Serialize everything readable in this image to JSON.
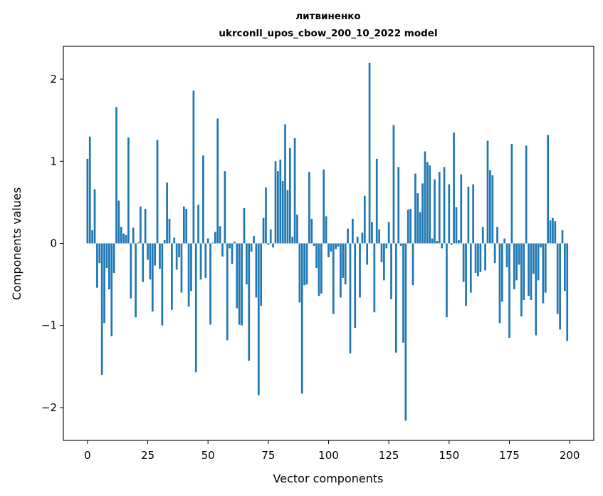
{
  "chart_data": {
    "type": "bar",
    "title_line1": "литвиненко",
    "title_line2": "ukrconll_upos_cbow_200_10_2022 model",
    "xlabel": "Vector components",
    "ylabel": "Components values",
    "xlim": [
      -10,
      210
    ],
    "ylim": [
      -2.4,
      2.4
    ],
    "xticks": [
      0,
      25,
      50,
      75,
      100,
      125,
      150,
      175,
      200
    ],
    "xtick_labels": [
      "0",
      "25",
      "50",
      "75",
      "100",
      "125",
      "150",
      "175",
      "200"
    ],
    "yticks": [
      -2,
      -1,
      0,
      1,
      2
    ],
    "ytick_labels": [
      "−2",
      "−1",
      "0",
      "1",
      "2"
    ],
    "grid": false,
    "bar_color": "#1f77b4",
    "values": [
      1.03,
      1.3,
      0.16,
      0.66,
      -0.54,
      -0.24,
      -1.6,
      -0.97,
      -0.3,
      -0.56,
      -1.13,
      -0.36,
      1.66,
      0.52,
      0.2,
      0.12,
      0.1,
      1.29,
      -0.67,
      0.19,
      -0.9,
      0.01,
      0.45,
      -0.47,
      0.42,
      -0.2,
      -0.44,
      -0.83,
      -0.27,
      1.26,
      -0.31,
      -1.0,
      0.04,
      0.74,
      0.3,
      -0.81,
      0.07,
      -0.32,
      -0.17,
      -0.6,
      0.45,
      0.42,
      -0.77,
      -0.58,
      1.86,
      -1.57,
      0.47,
      -0.44,
      1.07,
      -0.42,
      0.06,
      -0.99,
      0.01,
      0.14,
      1.52,
      0.21,
      -0.16,
      0.88,
      -1.18,
      -0.06,
      -0.25,
      0.02,
      -0.79,
      -0.99,
      -1.0,
      0.43,
      -0.5,
      -1.43,
      -0.1,
      0.09,
      -0.66,
      -1.85,
      -0.76,
      0.31,
      0.68,
      -0.02,
      0.17,
      -0.05,
      1.0,
      0.88,
      1.02,
      0.76,
      1.45,
      0.65,
      1.16,
      0.08,
      1.28,
      0.35,
      -0.72,
      -1.83,
      -0.51,
      -0.5,
      0.87,
      0.3,
      -0.03,
      -0.3,
      -0.64,
      -0.61,
      0.9,
      0.33,
      -0.17,
      -0.1,
      -0.86,
      -0.07,
      -0.04,
      -0.66,
      -0.42,
      -0.5,
      0.18,
      -1.34,
      0.3,
      -1.03,
      0.08,
      -0.66,
      0.13,
      0.58,
      -0.26,
      2.2,
      0.26,
      -0.84,
      1.03,
      0.17,
      -0.23,
      -0.45,
      -0.06,
      0.26,
      -0.68,
      1.44,
      -1.33,
      0.93,
      -0.03,
      -1.21,
      -2.16,
      0.41,
      0.42,
      -0.51,
      0.85,
      0.61,
      0.38,
      0.73,
      1.12,
      0.99,
      0.95,
      0.06,
      0.78,
      0.03,
      0.87,
      -0.06,
      0.93,
      -0.9,
      0.72,
      -0.02,
      1.35,
      0.44,
      0.04,
      0.84,
      -0.47,
      -0.76,
      0.69,
      -0.6,
      0.72,
      -0.36,
      -0.4,
      -0.35,
      0.2,
      -0.33,
      1.25,
      0.89,
      0.83,
      -0.24,
      0.2,
      -0.97,
      -0.71,
      0.06,
      -0.29,
      -1.15,
      1.21,
      -0.56,
      -0.45,
      -0.26,
      -0.89,
      -0.69,
      1.19,
      -0.64,
      -0.69,
      -0.37,
      -1.12,
      -0.45,
      -0.05,
      -0.73,
      -0.6,
      1.32,
      0.28,
      0.31,
      0.27,
      -0.86,
      -1.05,
      0.16,
      -0.58,
      -1.19
    ]
  }
}
